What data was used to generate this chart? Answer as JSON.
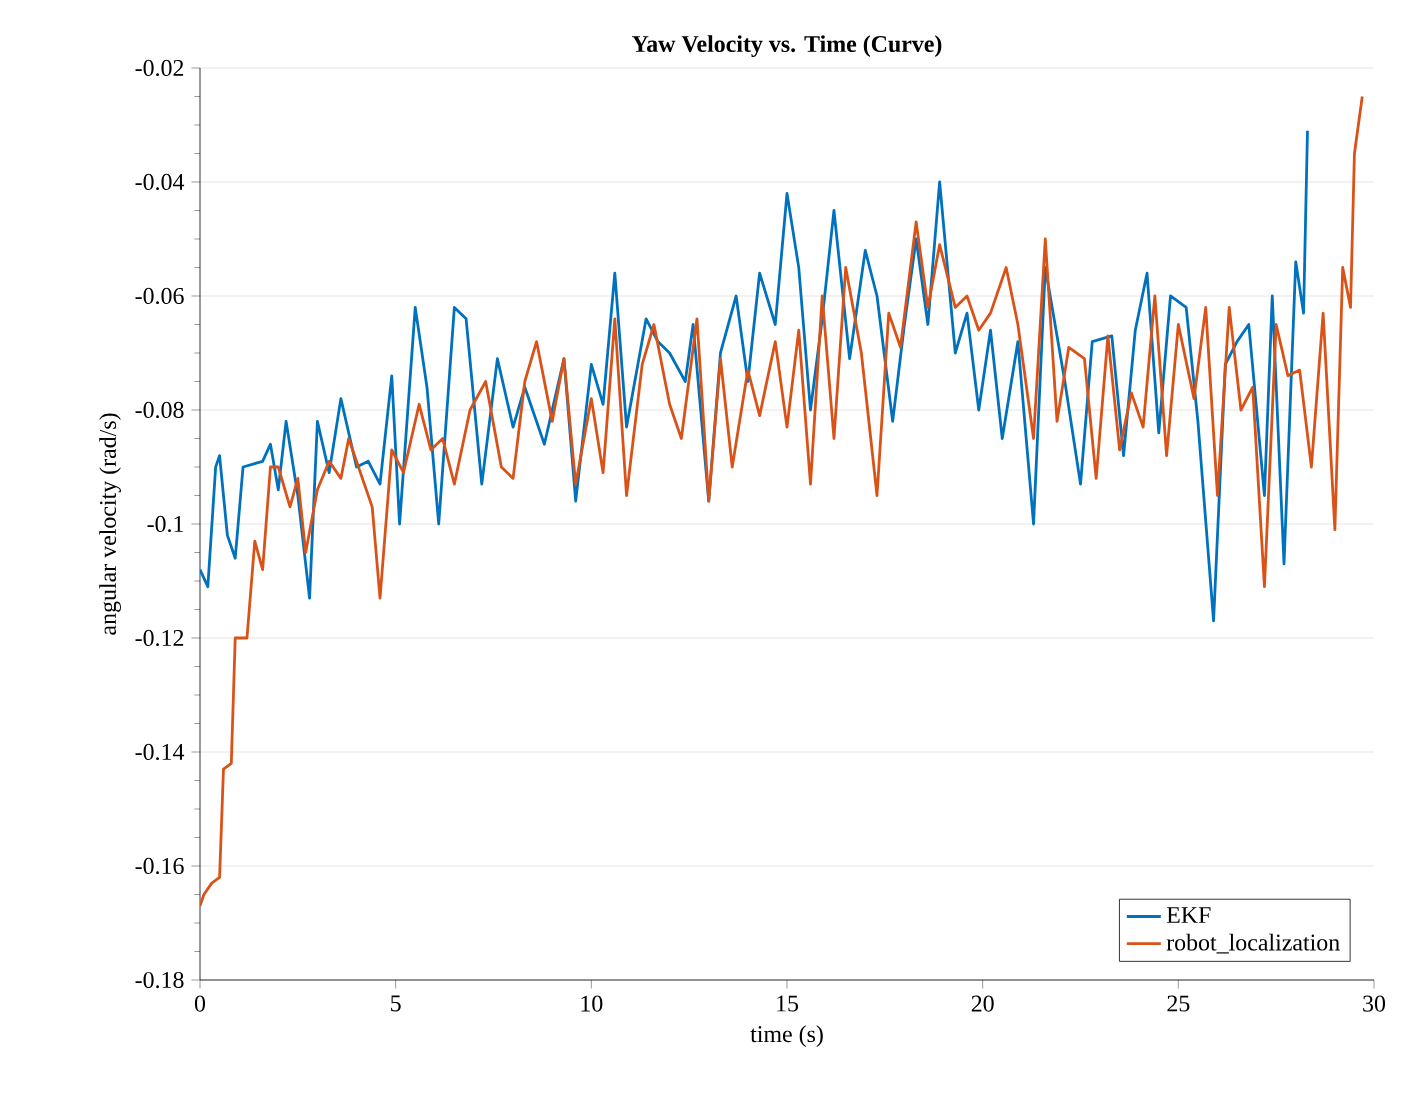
{
  "chart_data": {
    "type": "line",
    "title": "Yaw Velocity vs. Time (Curve)",
    "xlabel": "time (s)",
    "ylabel": "angular velocity (rad/s)",
    "xlim": [
      0,
      30
    ],
    "ylim": [
      -0.18,
      -0.02
    ],
    "xticks": [
      0,
      5,
      10,
      15,
      20,
      25,
      30
    ],
    "yticks": [
      -0.18,
      -0.16,
      -0.14,
      -0.12,
      -0.1,
      -0.08,
      -0.06,
      -0.04,
      -0.02
    ],
    "grid": "y",
    "legend": "bottom right",
    "marker": "none",
    "line_style": "solid",
    "series": [
      {
        "name": "EKF",
        "color": "#0072bd",
        "x": [
          0,
          0.2,
          0.4,
          0.5,
          0.7,
          0.9,
          1.1,
          1.6,
          1.8,
          2.0,
          2.2,
          2.5,
          2.8,
          3.0,
          3.3,
          3.6,
          4.0,
          4.3,
          4.6,
          4.9,
          5.1,
          5.5,
          5.8,
          6.1,
          6.5,
          6.8,
          7.2,
          7.6,
          8.0,
          8.3,
          8.8,
          9.3,
          9.6,
          10.0,
          10.3,
          10.6,
          10.9,
          11.4,
          11.7,
          12.0,
          12.4,
          12.6,
          13.0,
          13.3,
          13.7,
          14.0,
          14.3,
          14.7,
          15.0,
          15.3,
          15.6,
          15.9,
          16.2,
          16.6,
          17.0,
          17.3,
          17.7,
          18.0,
          18.3,
          18.6,
          18.9,
          19.3,
          19.6,
          19.9,
          20.2,
          20.5,
          20.9,
          21.3,
          21.6,
          22.1,
          22.5,
          22.8,
          23.3,
          23.6,
          23.9,
          24.2,
          24.5,
          24.8,
          25.2,
          25.5,
          25.9,
          26.2,
          26.5,
          26.8,
          27.2,
          27.4,
          27.7,
          28.0,
          28.2,
          28.3
        ],
        "values": [
          -0.108,
          -0.111,
          -0.09,
          -0.088,
          -0.102,
          -0.106,
          -0.09,
          -0.089,
          -0.086,
          -0.094,
          -0.082,
          -0.095,
          -0.113,
          -0.082,
          -0.091,
          -0.078,
          -0.09,
          -0.089,
          -0.093,
          -0.074,
          -0.1,
          -0.062,
          -0.076,
          -0.1,
          -0.062,
          -0.064,
          -0.093,
          -0.071,
          -0.083,
          -0.076,
          -0.086,
          -0.071,
          -0.096,
          -0.072,
          -0.079,
          -0.056,
          -0.083,
          -0.064,
          -0.068,
          -0.07,
          -0.075,
          -0.065,
          -0.096,
          -0.07,
          -0.06,
          -0.075,
          -0.056,
          -0.065,
          -0.042,
          -0.055,
          -0.08,
          -0.064,
          -0.045,
          -0.071,
          -0.052,
          -0.06,
          -0.082,
          -0.065,
          -0.05,
          -0.065,
          -0.04,
          -0.07,
          -0.063,
          -0.08,
          -0.066,
          -0.085,
          -0.068,
          -0.1,
          -0.055,
          -0.075,
          -0.093,
          -0.068,
          -0.067,
          -0.088,
          -0.066,
          -0.056,
          -0.084,
          -0.06,
          -0.062,
          -0.082,
          -0.117,
          -0.072,
          -0.068,
          -0.065,
          -0.095,
          -0.06,
          -0.107,
          -0.054,
          -0.063,
          -0.031
        ]
      },
      {
        "name": "robot_localization",
        "color": "#d95319",
        "x": [
          0,
          0.1,
          0.3,
          0.5,
          0.6,
          0.8,
          0.9,
          1.2,
          1.4,
          1.6,
          1.8,
          2.0,
          2.3,
          2.5,
          2.7,
          3.0,
          3.3,
          3.6,
          3.8,
          4.1,
          4.4,
          4.6,
          4.9,
          5.2,
          5.6,
          5.9,
          6.2,
          6.5,
          6.9,
          7.3,
          7.7,
          8.0,
          8.3,
          8.6,
          9.0,
          9.3,
          9.6,
          10.0,
          10.3,
          10.6,
          10.9,
          11.3,
          11.6,
          12.0,
          12.3,
          12.7,
          13.0,
          13.3,
          13.6,
          14.0,
          14.3,
          14.7,
          15.0,
          15.3,
          15.6,
          15.9,
          16.2,
          16.5,
          16.9,
          17.3,
          17.6,
          17.9,
          18.3,
          18.6,
          18.9,
          19.3,
          19.6,
          19.9,
          20.2,
          20.6,
          20.9,
          21.3,
          21.6,
          21.9,
          22.2,
          22.6,
          22.9,
          23.2,
          23.5,
          23.8,
          24.1,
          24.4,
          24.7,
          25.0,
          25.4,
          25.7,
          26.0,
          26.3,
          26.6,
          26.9,
          27.2,
          27.5,
          27.8,
          28.1,
          28.4,
          28.7,
          29.0,
          29.2,
          29.4,
          29.5,
          29.7
        ],
        "values": [
          -0.167,
          -0.165,
          -0.163,
          -0.162,
          -0.143,
          -0.142,
          -0.12,
          -0.12,
          -0.103,
          -0.108,
          -0.09,
          -0.09,
          -0.097,
          -0.092,
          -0.105,
          -0.094,
          -0.089,
          -0.092,
          -0.085,
          -0.091,
          -0.097,
          -0.113,
          -0.087,
          -0.091,
          -0.079,
          -0.087,
          -0.085,
          -0.093,
          -0.08,
          -0.075,
          -0.09,
          -0.092,
          -0.075,
          -0.068,
          -0.082,
          -0.071,
          -0.093,
          -0.078,
          -0.091,
          -0.064,
          -0.095,
          -0.072,
          -0.065,
          -0.079,
          -0.085,
          -0.064,
          -0.096,
          -0.071,
          -0.09,
          -0.073,
          -0.081,
          -0.068,
          -0.083,
          -0.066,
          -0.093,
          -0.06,
          -0.085,
          -0.055,
          -0.07,
          -0.095,
          -0.063,
          -0.069,
          -0.047,
          -0.062,
          -0.051,
          -0.062,
          -0.06,
          -0.066,
          -0.063,
          -0.055,
          -0.065,
          -0.085,
          -0.05,
          -0.082,
          -0.069,
          -0.071,
          -0.092,
          -0.067,
          -0.087,
          -0.077,
          -0.083,
          -0.06,
          -0.088,
          -0.065,
          -0.078,
          -0.062,
          -0.095,
          -0.062,
          -0.08,
          -0.076,
          -0.111,
          -0.065,
          -0.074,
          -0.073,
          -0.09,
          -0.063,
          -0.101,
          -0.055,
          -0.062,
          -0.035,
          -0.025
        ]
      }
    ]
  }
}
